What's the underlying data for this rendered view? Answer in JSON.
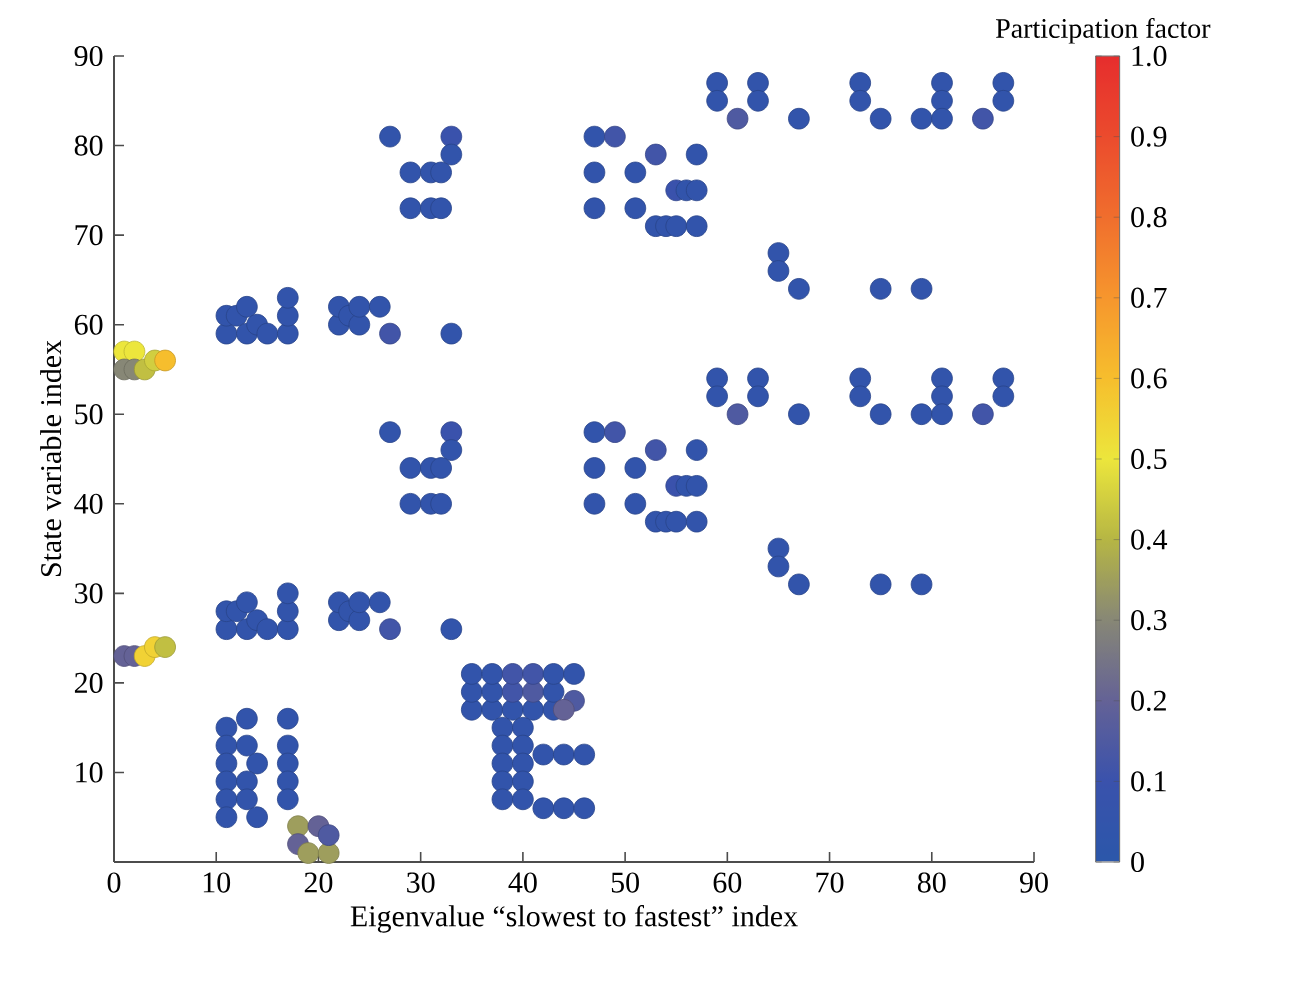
{
  "chart_data": {
    "type": "scatter",
    "xlabel": "Eigenvalue “slowest to fastest” index",
    "ylabel": "State variable index",
    "clabel": "Participation factor",
    "marker": "circle",
    "xlim": [
      0,
      90
    ],
    "ylim": [
      0,
      90
    ],
    "xticks": [
      0,
      10,
      20,
      30,
      40,
      50,
      60,
      70,
      80,
      90
    ],
    "yticks": [
      10,
      20,
      30,
      40,
      50,
      60,
      70,
      80,
      90
    ],
    "clim": [
      0,
      1
    ],
    "cticks": [
      0,
      0.1,
      0.2,
      0.3,
      0.4,
      0.5,
      0.6,
      0.7,
      0.8,
      0.9,
      {
        "value": 1,
        "label": "1.0"
      }
    ],
    "x": [
      1,
      2,
      1,
      2,
      3,
      4,
      5,
      1,
      2,
      3,
      4,
      5,
      11,
      11,
      12,
      13,
      13,
      14,
      15,
      17,
      17,
      17,
      11,
      11,
      12,
      13,
      13,
      14,
      15,
      17,
      17,
      17,
      22,
      22,
      23,
      24,
      24,
      26,
      27,
      33,
      22,
      22,
      23,
      24,
      24,
      26,
      27,
      33,
      27,
      33,
      33,
      29,
      31,
      32,
      29,
      31,
      32,
      27,
      33,
      33,
      29,
      31,
      32,
      29,
      31,
      32,
      47,
      49,
      47,
      47,
      51,
      53,
      57,
      55,
      56,
      57,
      51,
      53,
      54,
      55,
      57,
      47,
      49,
      47,
      47,
      51,
      53,
      57,
      55,
      56,
      57,
      51,
      53,
      54,
      55,
      57,
      59,
      59,
      61,
      63,
      63,
      67,
      73,
      73,
      75,
      79,
      81,
      81,
      81,
      85,
      87,
      87,
      59,
      59,
      61,
      63,
      63,
      67,
      73,
      73,
      75,
      79,
      81,
      81,
      81,
      85,
      87,
      87,
      65,
      65,
      67,
      75,
      79,
      65,
      65,
      67,
      75,
      79,
      11,
      13,
      17,
      11,
      13,
      17,
      11,
      14,
      17,
      11,
      13,
      17,
      11,
      13,
      17,
      11,
      14,
      18,
      20,
      18,
      19,
      21,
      21,
      35,
      35,
      35,
      37,
      37,
      37,
      39,
      39,
      39,
      41,
      41,
      41,
      43,
      43,
      43,
      45,
      45,
      44,
      38,
      38,
      38,
      38,
      38,
      40,
      40,
      40,
      40,
      40,
      42,
      44,
      46,
      42,
      44,
      46
    ],
    "values": [
      57,
      57,
      55,
      55,
      55,
      56,
      56,
      23,
      23,
      23,
      24,
      24,
      59,
      61,
      61,
      62,
      59,
      60,
      59,
      59,
      61,
      63,
      26,
      28,
      28,
      29,
      26,
      27,
      26,
      26,
      28,
      30,
      60,
      62,
      61,
      60,
      62,
      62,
      59,
      59,
      27,
      29,
      28,
      27,
      29,
      29,
      26,
      26,
      81,
      81,
      79,
      77,
      77,
      77,
      73,
      73,
      73,
      48,
      48,
      46,
      44,
      44,
      44,
      40,
      40,
      40,
      81,
      81,
      77,
      73,
      77,
      79,
      79,
      75,
      75,
      75,
      73,
      71,
      71,
      71,
      71,
      48,
      48,
      44,
      40,
      44,
      46,
      46,
      42,
      42,
      42,
      40,
      38,
      38,
      38,
      38,
      87,
      85,
      83,
      87,
      85,
      83,
      87,
      85,
      83,
      83,
      87,
      85,
      83,
      83,
      87,
      85,
      54,
      52,
      50,
      54,
      52,
      50,
      54,
      52,
      50,
      50,
      54,
      52,
      50,
      50,
      54,
      52,
      68,
      66,
      64,
      64,
      64,
      35,
      33,
      31,
      31,
      31,
      15,
      16,
      16,
      13,
      13,
      13,
      11,
      11,
      11,
      9,
      9,
      9,
      7,
      7,
      7,
      5,
      5,
      4,
      4,
      2,
      1,
      1,
      3,
      17,
      19,
      21,
      17,
      19,
      21,
      17,
      19,
      21,
      17,
      19,
      21,
      17,
      19,
      21,
      21,
      18,
      17,
      15,
      13,
      11,
      9,
      7,
      15,
      13,
      11,
      9,
      7,
      12,
      12,
      12,
      6,
      6,
      6
    ],
    "cvalues": [
      0.5,
      0.5,
      0.3,
      0.3,
      0.42,
      0.45,
      0.6,
      0.2,
      0.2,
      0.55,
      0.55,
      0.42,
      0.05,
      0.05,
      0.05,
      0.05,
      0.05,
      0.05,
      0.05,
      0.05,
      0.05,
      0.05,
      0.05,
      0.05,
      0.05,
      0.05,
      0.05,
      0.05,
      0.05,
      0.05,
      0.05,
      0.05,
      0.05,
      0.05,
      0.05,
      0.05,
      0.05,
      0.05,
      0.12,
      0.05,
      0.05,
      0.05,
      0.05,
      0.05,
      0.05,
      0.05,
      0.12,
      0.05,
      0.05,
      0.1,
      0.05,
      0.05,
      0.05,
      0.05,
      0.05,
      0.05,
      0.05,
      0.05,
      0.1,
      0.05,
      0.05,
      0.05,
      0.05,
      0.05,
      0.05,
      0.05,
      0.05,
      0.12,
      0.05,
      0.05,
      0.05,
      0.12,
      0.05,
      0.1,
      0.05,
      0.05,
      0.05,
      0.05,
      0.05,
      0.05,
      0.05,
      0.05,
      0.12,
      0.05,
      0.05,
      0.05,
      0.12,
      0.05,
      0.1,
      0.05,
      0.05,
      0.05,
      0.05,
      0.05,
      0.05,
      0.05,
      0.05,
      0.05,
      0.15,
      0.05,
      0.05,
      0.05,
      0.05,
      0.05,
      0.05,
      0.05,
      0.05,
      0.05,
      0.05,
      0.12,
      0.05,
      0.05,
      0.05,
      0.05,
      0.15,
      0.05,
      0.05,
      0.05,
      0.05,
      0.05,
      0.05,
      0.05,
      0.05,
      0.05,
      0.05,
      0.12,
      0.05,
      0.05,
      0.05,
      0.05,
      0.05,
      0.05,
      0.05,
      0.05,
      0.05,
      0.05,
      0.05,
      0.05,
      0.05,
      0.05,
      0.05,
      0.05,
      0.05,
      0.05,
      0.05,
      0.05,
      0.05,
      0.05,
      0.05,
      0.05,
      0.05,
      0.05,
      0.05,
      0.05,
      0.05,
      0.35,
      0.2,
      0.2,
      0.35,
      0.35,
      0.15,
      0.05,
      0.05,
      0.05,
      0.05,
      0.05,
      0.05,
      0.05,
      0.12,
      0.12,
      0.05,
      0.15,
      0.12,
      0.05,
      0.05,
      0.05,
      0.05,
      0.15,
      0.2,
      0.05,
      0.05,
      0.05,
      0.05,
      0.05,
      0.05,
      0.05,
      0.05,
      0.05,
      0.05,
      0.05,
      0.05,
      0.05,
      0.05,
      0.05,
      0.05
    ]
  }
}
